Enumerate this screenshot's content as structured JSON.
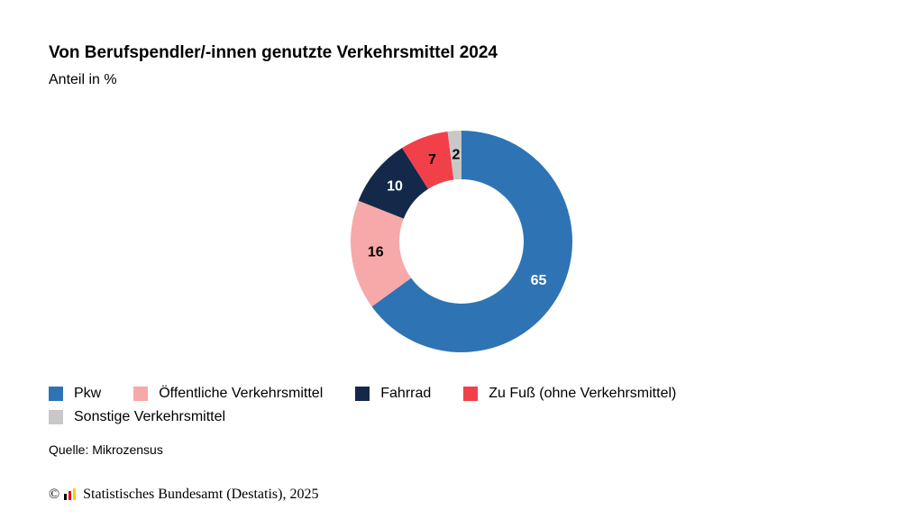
{
  "header": {
    "title": "Von Berufspendler/-innen genutzte Verkehrsmittel 2024",
    "subtitle": "Anteil in %"
  },
  "chart_data": {
    "type": "pie",
    "variant": "donut",
    "title": "Von Berufspendler/-innen genutzte Verkehrsmittel 2024",
    "subtitle": "Anteil in %",
    "legend_position": "bottom-left",
    "categories": [
      "Pkw",
      "Öffentliche Verkehrsmittel",
      "Fahrrad",
      "Zu Fuß (ohne Verkehrsmittel)",
      "Sonstige Verkehrsmittel"
    ],
    "values": [
      65,
      16,
      10,
      7,
      2
    ],
    "colors": [
      "#2e74b5",
      "#f7a8a8",
      "#14294a",
      "#f2404a",
      "#c8c8c8"
    ],
    "label_colors": [
      "#ffffff",
      "#000000",
      "#ffffff",
      "#000000",
      "#000000"
    ]
  },
  "footer": {
    "source": "Quelle: Mikrozensus",
    "copyright_symbol": "©",
    "copyright_text": "Statistisches Bundesamt (Destatis), 2025",
    "logo_colors": [
      "#000000",
      "#e2001a",
      "#ffcc00"
    ]
  }
}
